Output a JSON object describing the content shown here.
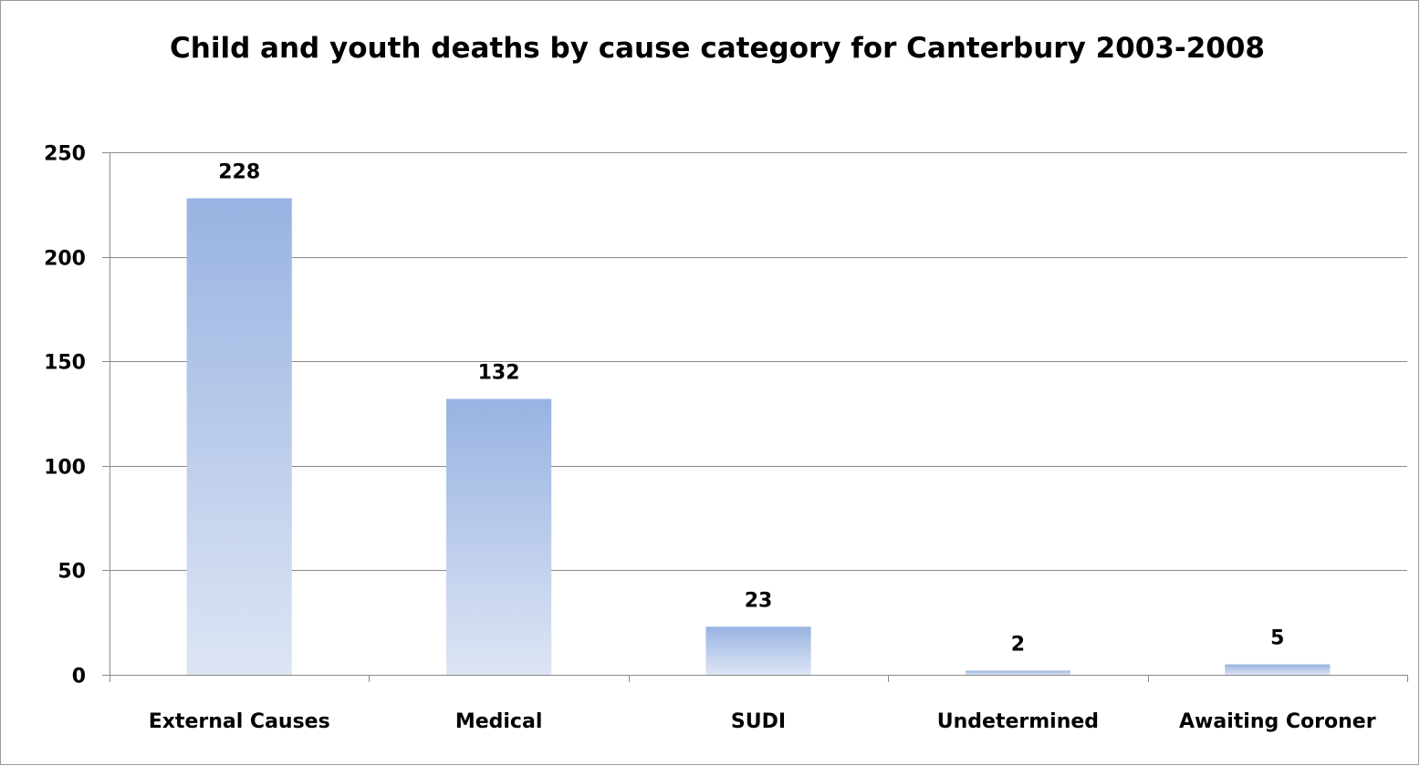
{
  "chart_data": {
    "type": "bar",
    "title": "Child and youth deaths by cause category for Canterbury 2003-2008",
    "categories": [
      "External Causes",
      "Medical",
      "SUDI",
      "Undetermined",
      "Awaiting Coroner"
    ],
    "values": [
      228,
      132,
      23,
      2,
      5
    ],
    "data_labels": [
      "228",
      "132",
      "23",
      "2",
      "5"
    ],
    "yticks": [
      0,
      50,
      100,
      150,
      200,
      250
    ],
    "ytick_labels": [
      "0",
      "50",
      "100",
      "150",
      "200",
      "250"
    ],
    "ylim": [
      0,
      250
    ],
    "xlabel": "",
    "ylabel": "",
    "grid": true,
    "legend": "none",
    "colors": {
      "bar_top": "#98b3e2",
      "bar_bottom": "#dde5f4",
      "grid": "#8a8a8a",
      "border": "#9a9a9a",
      "axis": "#8a8a8a"
    }
  }
}
